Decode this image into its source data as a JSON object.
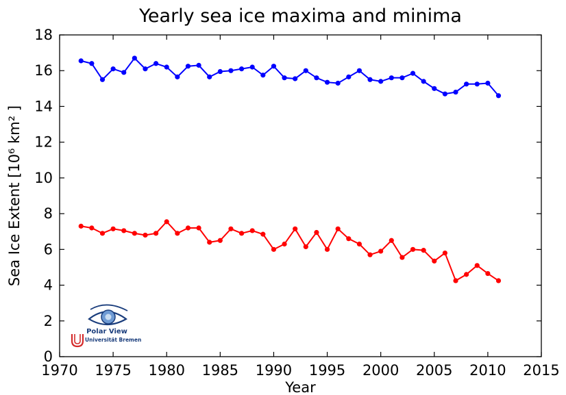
{
  "chart_data": {
    "type": "line",
    "title": "Yearly sea ice maxima and minima",
    "xlabel": "Year",
    "ylabel": "Sea Ice Extent [10⁶  km² ]",
    "xlim": [
      1970,
      2015
    ],
    "ylim": [
      0,
      18
    ],
    "xticks": [
      1970,
      1975,
      1980,
      1985,
      1990,
      1995,
      2000,
      2005,
      2010,
      2015
    ],
    "yticks": [
      0,
      2,
      4,
      6,
      8,
      10,
      12,
      14,
      16,
      18
    ],
    "grid": false,
    "legend": "none",
    "x": [
      1972,
      1973,
      1974,
      1975,
      1976,
      1977,
      1978,
      1979,
      1980,
      1981,
      1982,
      1983,
      1984,
      1985,
      1986,
      1987,
      1988,
      1989,
      1990,
      1991,
      1992,
      1993,
      1994,
      1995,
      1996,
      1997,
      1998,
      1999,
      2000,
      2001,
      2002,
      2003,
      2004,
      2005,
      2006,
      2007,
      2008,
      2009,
      2010,
      2011
    ],
    "series": [
      {
        "color": "#0000ff",
        "values": [
          16.55,
          16.4,
          15.5,
          16.1,
          15.9,
          16.7,
          16.1,
          16.4,
          16.2,
          15.65,
          16.25,
          16.3,
          15.65,
          15.95,
          16.0,
          16.1,
          16.2,
          15.75,
          16.25,
          15.6,
          15.55,
          16.0,
          15.6,
          15.35,
          15.3,
          15.65,
          16.0,
          15.5,
          15.4,
          15.6,
          15.6,
          15.85,
          15.4,
          15.0,
          14.7,
          14.8,
          15.25,
          15.25,
          15.3,
          14.6
        ]
      },
      {
        "color": "#ff0000",
        "values": [
          7.3,
          7.2,
          6.9,
          7.15,
          7.05,
          6.9,
          6.8,
          6.9,
          7.55,
          6.9,
          7.2,
          7.2,
          6.4,
          6.5,
          7.15,
          6.9,
          7.05,
          6.85,
          6.0,
          6.3,
          7.15,
          6.15,
          6.95,
          6.0,
          7.15,
          6.6,
          6.3,
          5.7,
          5.9,
          6.5,
          5.55,
          6.0,
          5.95,
          5.35,
          5.8,
          4.25,
          4.6,
          5.1,
          4.65,
          4.25
        ]
      }
    ]
  },
  "logo": {
    "name": "Polar View",
    "institution": "Universität Bremen"
  }
}
